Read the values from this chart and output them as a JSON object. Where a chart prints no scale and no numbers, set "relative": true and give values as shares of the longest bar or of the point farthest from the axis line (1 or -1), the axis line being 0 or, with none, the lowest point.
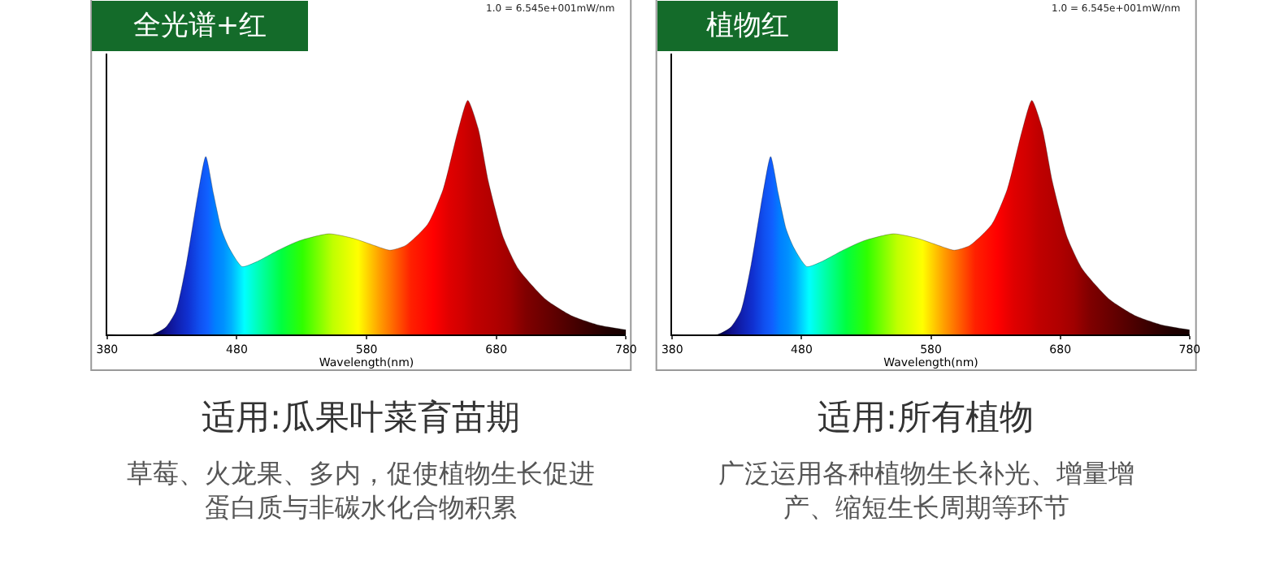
{
  "chart_data": [
    {
      "type": "area",
      "title": "全光谱+红",
      "xlabel": "Wavelength(nm)",
      "subtitle": "适用:瓜果叶菜育苗期",
      "annotations": [
        "1.0 = 6.545e+001mW/nm",
        "草莓、火龙果、多内，促使植物生长促进蛋白质与非碳水化合物积累"
      ],
      "xlim": [
        380,
        780
      ],
      "xticks": [
        380,
        480,
        580,
        680,
        780
      ],
      "relative": true,
      "series": [
        {
          "x": [
            380,
            415,
            425,
            433,
            441,
            450,
            456,
            462,
            468,
            474,
            484,
            495,
            512,
            528,
            551,
            570,
            586,
            598,
            610,
            627,
            639,
            650,
            658,
            666,
            674,
            685,
            697,
            718,
            738,
            759,
            780
          ],
          "values": [
            0,
            0,
            0.03,
            0.1,
            0.3,
            0.6,
            0.76,
            0.6,
            0.45,
            0.37,
            0.29,
            0.31,
            0.36,
            0.4,
            0.43,
            0.41,
            0.38,
            0.36,
            0.38,
            0.47,
            0.62,
            0.86,
            1.0,
            0.88,
            0.65,
            0.42,
            0.28,
            0.15,
            0.08,
            0.04,
            0.02
          ],
          "colors": [
            "#000020",
            "#000040",
            "#10108a",
            "#1020b0",
            "#1030d0",
            "#1050f0",
            "#1060ff",
            "#0080ff",
            "#0090ff",
            "#00b0ff",
            "#00ffff",
            "#00ffb0",
            "#00ff40",
            "#30ff00",
            "#c0ff00",
            "#ffff00",
            "#ffa000",
            "#ff6000",
            "#ff2000",
            "#ff0000",
            "#e00000",
            "#d00000",
            "#c00000",
            "#b80000",
            "#b00000",
            "#a00000",
            "#800000",
            "#600000",
            "#400000",
            "#200000",
            "#100000"
          ]
        }
      ]
    },
    {
      "type": "area",
      "title": "植物红",
      "xlabel": "Wavelength(nm)",
      "subtitle": "适用:所有植物",
      "annotations": [
        "1.0 = 6.545e+001mW/nm",
        "广泛运用各种植物生长补光、增量增产、缩短生长周期等环节"
      ],
      "xlim": [
        380,
        780
      ],
      "xticks": [
        380,
        480,
        580,
        680,
        780
      ],
      "relative": true,
      "series": [
        {
          "x": [
            380,
            415,
            425,
            433,
            441,
            450,
            456,
            462,
            468,
            474,
            484,
            495,
            512,
            528,
            551,
            570,
            586,
            598,
            610,
            627,
            639,
            650,
            658,
            666,
            674,
            685,
            697,
            718,
            738,
            759,
            780
          ],
          "values": [
            0,
            0,
            0.03,
            0.1,
            0.3,
            0.6,
            0.76,
            0.6,
            0.45,
            0.37,
            0.29,
            0.31,
            0.36,
            0.4,
            0.43,
            0.41,
            0.38,
            0.36,
            0.38,
            0.47,
            0.62,
            0.86,
            1.0,
            0.88,
            0.65,
            0.42,
            0.28,
            0.15,
            0.08,
            0.04,
            0.02
          ],
          "colors": [
            "#000020",
            "#000040",
            "#10108a",
            "#1020b0",
            "#1030d0",
            "#1050f0",
            "#1060ff",
            "#0080ff",
            "#0090ff",
            "#00b0ff",
            "#00ffff",
            "#00ffb0",
            "#00ff40",
            "#30ff00",
            "#c0ff00",
            "#ffff00",
            "#ffa000",
            "#ff6000",
            "#ff2000",
            "#ff0000",
            "#e00000",
            "#d00000",
            "#c00000",
            "#b80000",
            "#b00000",
            "#a00000",
            "#800000",
            "#600000",
            "#400000",
            "#200000",
            "#100000"
          ]
        }
      ]
    }
  ]
}
